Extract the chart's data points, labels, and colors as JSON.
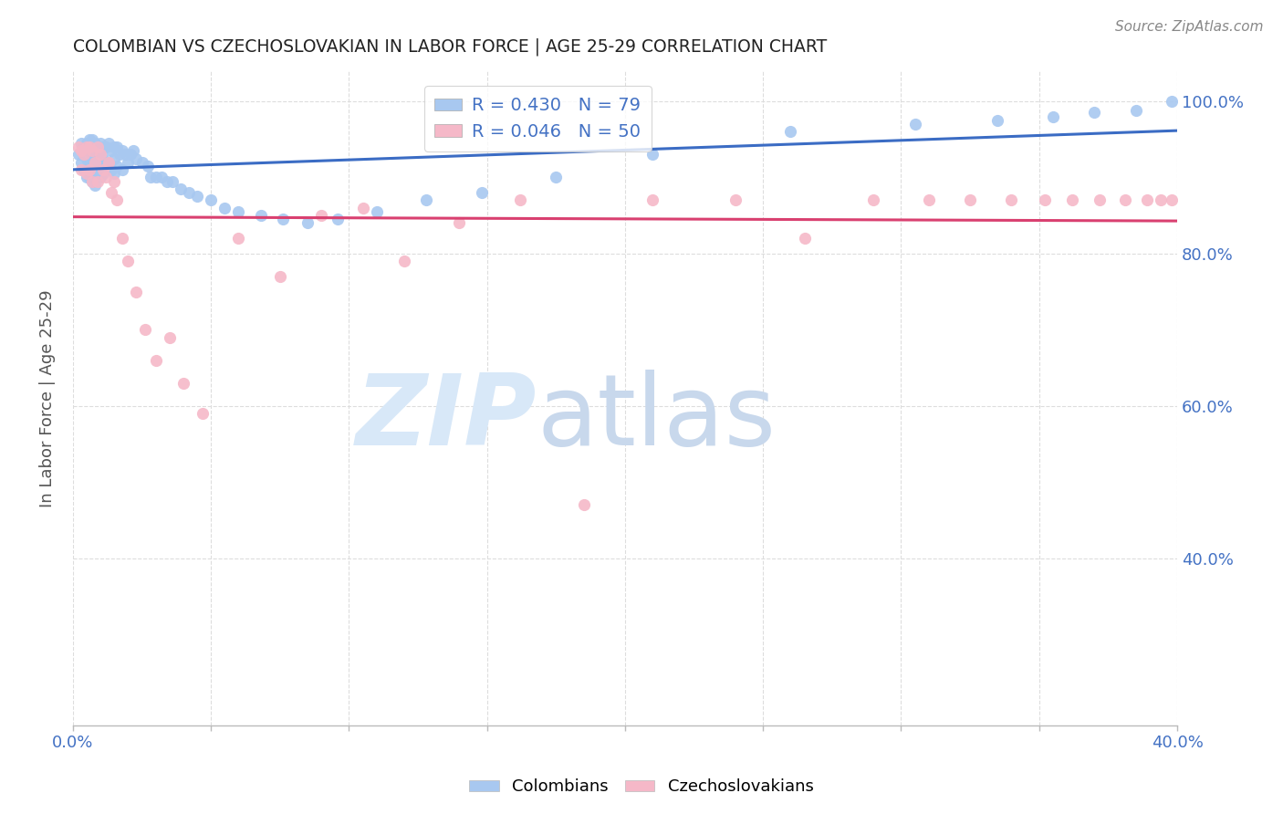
{
  "title": "COLOMBIAN VS CZECHOSLOVAKIAN IN LABOR FORCE | AGE 25-29 CORRELATION CHART",
  "source": "Source: ZipAtlas.com",
  "ylabel": "In Labor Force | Age 25-29",
  "xlim": [
    0.0,
    0.4
  ],
  "ylim": [
    0.18,
    1.04
  ],
  "xtick_positions": [
    0.0,
    0.05,
    0.1,
    0.15,
    0.2,
    0.25,
    0.3,
    0.35,
    0.4
  ],
  "xtick_labels": [
    "0.0%",
    "",
    "",
    "",
    "",
    "",
    "",
    "",
    "40.0%"
  ],
  "ytick_positions": [
    0.4,
    0.6,
    0.8,
    1.0
  ],
  "ytick_labels": [
    "40.0%",
    "60.0%",
    "80.0%",
    "100.0%"
  ],
  "blue_scatter_color": "#A8C8F0",
  "pink_scatter_color": "#F5B8C8",
  "blue_line_color": "#3B6CC4",
  "pink_line_color": "#D94070",
  "grid_color": "#DDDDDD",
  "title_color": "#222222",
  "tick_color": "#4472C4",
  "ylabel_color": "#555555",
  "source_color": "#888888",
  "legend_blue_label": "R = 0.430   N = 79",
  "legend_pink_label": "R = 0.046   N = 50",
  "colombians_x": [
    0.002,
    0.003,
    0.003,
    0.004,
    0.004,
    0.005,
    0.005,
    0.005,
    0.006,
    0.006,
    0.006,
    0.006,
    0.007,
    0.007,
    0.007,
    0.007,
    0.007,
    0.008,
    0.008,
    0.008,
    0.008,
    0.009,
    0.009,
    0.009,
    0.01,
    0.01,
    0.01,
    0.01,
    0.011,
    0.011,
    0.011,
    0.012,
    0.012,
    0.013,
    0.013,
    0.014,
    0.014,
    0.015,
    0.015,
    0.015,
    0.016,
    0.016,
    0.017,
    0.018,
    0.018,
    0.019,
    0.02,
    0.021,
    0.022,
    0.023,
    0.025,
    0.027,
    0.028,
    0.03,
    0.032,
    0.034,
    0.036,
    0.039,
    0.042,
    0.045,
    0.05,
    0.055,
    0.06,
    0.068,
    0.076,
    0.085,
    0.096,
    0.11,
    0.128,
    0.148,
    0.175,
    0.21,
    0.26,
    0.305,
    0.335,
    0.355,
    0.37,
    0.385,
    0.398
  ],
  "colombians_y": [
    0.93,
    0.945,
    0.92,
    0.94,
    0.91,
    0.945,
    0.925,
    0.9,
    0.95,
    0.935,
    0.92,
    0.9,
    0.95,
    0.94,
    0.925,
    0.91,
    0.895,
    0.945,
    0.93,
    0.915,
    0.89,
    0.94,
    0.925,
    0.905,
    0.945,
    0.935,
    0.92,
    0.9,
    0.94,
    0.925,
    0.905,
    0.94,
    0.92,
    0.945,
    0.92,
    0.935,
    0.91,
    0.94,
    0.925,
    0.905,
    0.94,
    0.915,
    0.93,
    0.935,
    0.91,
    0.93,
    0.92,
    0.93,
    0.935,
    0.925,
    0.92,
    0.915,
    0.9,
    0.9,
    0.9,
    0.895,
    0.895,
    0.885,
    0.88,
    0.875,
    0.87,
    0.86,
    0.855,
    0.85,
    0.845,
    0.84,
    0.845,
    0.855,
    0.87,
    0.88,
    0.9,
    0.93,
    0.96,
    0.97,
    0.975,
    0.98,
    0.985,
    0.988,
    1.0
  ],
  "czechoslovakians_x": [
    0.002,
    0.003,
    0.003,
    0.004,
    0.005,
    0.005,
    0.006,
    0.006,
    0.007,
    0.007,
    0.008,
    0.009,
    0.009,
    0.01,
    0.011,
    0.012,
    0.013,
    0.014,
    0.015,
    0.016,
    0.018,
    0.02,
    0.023,
    0.026,
    0.03,
    0.035,
    0.04,
    0.047,
    0.06,
    0.075,
    0.09,
    0.105,
    0.12,
    0.14,
    0.162,
    0.185,
    0.21,
    0.24,
    0.265,
    0.29,
    0.31,
    0.325,
    0.34,
    0.352,
    0.362,
    0.372,
    0.381,
    0.389,
    0.394,
    0.398
  ],
  "czechoslovakians_y": [
    0.94,
    0.935,
    0.91,
    0.93,
    0.94,
    0.905,
    0.94,
    0.91,
    0.935,
    0.895,
    0.92,
    0.94,
    0.895,
    0.93,
    0.91,
    0.9,
    0.92,
    0.88,
    0.895,
    0.87,
    0.82,
    0.79,
    0.75,
    0.7,
    0.66,
    0.69,
    0.63,
    0.59,
    0.82,
    0.77,
    0.85,
    0.86,
    0.79,
    0.84,
    0.87,
    0.47,
    0.87,
    0.87,
    0.82,
    0.87,
    0.87,
    0.87,
    0.87,
    0.87,
    0.87,
    0.87,
    0.87,
    0.87,
    0.87,
    0.87
  ]
}
